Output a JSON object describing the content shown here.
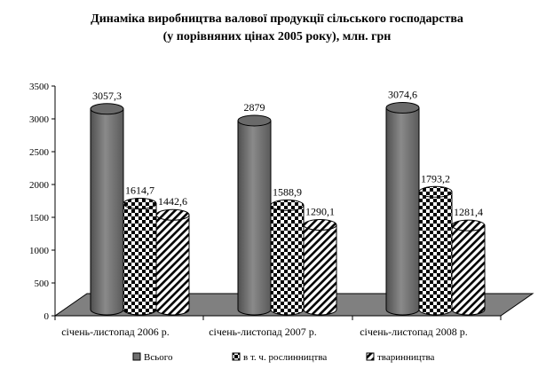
{
  "chart_data": {
    "type": "bar",
    "title": "Динаміка виробництва валової продукції сільського господарства",
    "subtitle": "(у порівняних цінах 2005 року), млн. грн",
    "categories": [
      "січень-листопад 2006 р.",
      "січень-листопад 2007 р.",
      "січень-листопад 2008 р."
    ],
    "series": [
      {
        "name": "Всього",
        "values": [
          3057.3,
          2879,
          3074.6
        ],
        "labels": [
          "3057,3",
          "2879",
          "3074,6"
        ],
        "color": "#707070",
        "pattern": "solid"
      },
      {
        "name": "в т. ч. рослинництва",
        "values": [
          1614.7,
          1588.9,
          1793.2
        ],
        "labels": [
          "1614,7",
          "1588,9",
          "1793,2"
        ],
        "color": "#000000",
        "pattern": "checker"
      },
      {
        "name": "тваринництва",
        "values": [
          1442.6,
          1290.1,
          1281.4
        ],
        "labels": [
          "1442,6",
          "1290,1",
          "1281,4"
        ],
        "color": "#000000",
        "pattern": "diagonal"
      }
    ],
    "ylim": [
      0,
      3500
    ],
    "yticks": [
      0,
      500,
      1000,
      1500,
      2000,
      2500,
      3000,
      3500
    ],
    "xlabel": "",
    "ylabel": "",
    "grid": false,
    "legend": "bottom",
    "floor_color": "#808080"
  }
}
